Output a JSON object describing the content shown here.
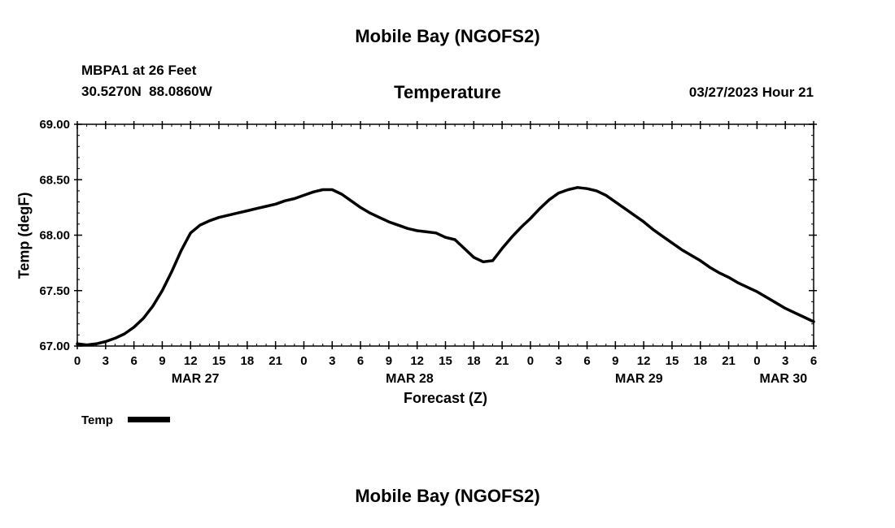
{
  "page": {
    "top_title": "Mobile Bay (NGOFS2)",
    "bottom_title": "Mobile Bay (NGOFS2)"
  },
  "header": {
    "station": "MBPA1 at 26 Feet",
    "coords": "30.5270N  88.0860W",
    "chart_title": "Temperature",
    "datetime": "03/27/2023 Hour 21"
  },
  "legend": {
    "label": "Temp"
  },
  "chart_data": {
    "type": "line",
    "title": "Temperature",
    "xlabel": "Forecast (Z)",
    "ylabel": "Temp (degF)",
    "xlim": [
      0,
      78
    ],
    "ylim": [
      67.0,
      69.0
    ],
    "grid": false,
    "legend_position": "bottom-left",
    "colors": {
      "line": "#000000",
      "background": "#ffffff"
    },
    "x_major_tick_hours": 3,
    "x_minor_tick_hours": 1,
    "y_major_tick": 0.5,
    "y_minor_tick": 0.1,
    "x_tick_hours": [
      0,
      3,
      6,
      9,
      12,
      15,
      18,
      21,
      24,
      27,
      30,
      33,
      36,
      39,
      42,
      45,
      48,
      51,
      54,
      57,
      60,
      63,
      66,
      69,
      72,
      75,
      78
    ],
    "x_tick_labels": [
      "0",
      "3",
      "6",
      "9",
      "12",
      "15",
      "18",
      "21",
      "0",
      "3",
      "6",
      "9",
      "12",
      "15",
      "18",
      "21",
      "0",
      "3",
      "6",
      "9",
      "12",
      "15",
      "18",
      "21",
      "0",
      "3",
      "6"
    ],
    "day_labels": [
      {
        "label": "MAR 27",
        "hour": 12.5
      },
      {
        "label": "MAR 28",
        "hour": 35.2
      },
      {
        "label": "MAR 29",
        "hour": 59.5
      },
      {
        "label": "MAR 30",
        "hour": 74.8
      }
    ],
    "y_ticks": [
      67.0,
      67.5,
      68.0,
      68.5,
      69.0
    ],
    "y_tick_labels": [
      "67.00",
      "67.50",
      "68.00",
      "68.50",
      "69.00"
    ],
    "series": [
      {
        "name": "Temp",
        "color": "#000000",
        "points": [
          [
            0,
            67.02
          ],
          [
            1,
            67.01
          ],
          [
            2,
            67.02
          ],
          [
            3,
            67.04
          ],
          [
            4,
            67.07
          ],
          [
            5,
            67.11
          ],
          [
            6,
            67.17
          ],
          [
            7,
            67.25
          ],
          [
            8,
            67.36
          ],
          [
            9,
            67.5
          ],
          [
            10,
            67.67
          ],
          [
            11,
            67.86
          ],
          [
            12,
            68.02
          ],
          [
            13,
            68.09
          ],
          [
            14,
            68.13
          ],
          [
            15,
            68.16
          ],
          [
            16,
            68.18
          ],
          [
            17,
            68.2
          ],
          [
            18,
            68.22
          ],
          [
            19,
            68.24
          ],
          [
            20,
            68.26
          ],
          [
            21,
            68.28
          ],
          [
            22,
            68.31
          ],
          [
            23,
            68.33
          ],
          [
            24,
            68.36
          ],
          [
            25,
            68.39
          ],
          [
            26,
            68.41
          ],
          [
            27,
            68.41
          ],
          [
            28,
            68.37
          ],
          [
            29,
            68.31
          ],
          [
            30,
            68.25
          ],
          [
            31,
            68.2
          ],
          [
            32,
            68.16
          ],
          [
            33,
            68.12
          ],
          [
            34,
            68.09
          ],
          [
            35,
            68.06
          ],
          [
            36,
            68.04
          ],
          [
            37,
            68.03
          ],
          [
            38,
            68.02
          ],
          [
            39,
            67.98
          ],
          [
            40,
            67.96
          ],
          [
            41,
            67.88
          ],
          [
            42,
            67.8
          ],
          [
            43,
            67.76
          ],
          [
            44,
            67.77
          ],
          [
            45,
            67.88
          ],
          [
            46,
            67.98
          ],
          [
            47,
            68.07
          ],
          [
            48,
            68.15
          ],
          [
            49,
            68.24
          ],
          [
            50,
            68.32
          ],
          [
            51,
            68.38
          ],
          [
            52,
            68.41
          ],
          [
            53,
            68.43
          ],
          [
            54,
            68.42
          ],
          [
            55,
            68.4
          ],
          [
            56,
            68.36
          ],
          [
            57,
            68.3
          ],
          [
            58,
            68.24
          ],
          [
            59,
            68.18
          ],
          [
            60,
            68.12
          ],
          [
            61,
            68.05
          ],
          [
            62,
            67.99
          ],
          [
            63,
            67.93
          ],
          [
            64,
            67.87
          ],
          [
            65,
            67.82
          ],
          [
            66,
            67.77
          ],
          [
            67,
            67.71
          ],
          [
            68,
            67.66
          ],
          [
            69,
            67.62
          ],
          [
            70,
            67.57
          ],
          [
            71,
            67.53
          ],
          [
            72,
            67.49
          ],
          [
            73,
            67.44
          ],
          [
            74,
            67.39
          ],
          [
            75,
            67.34
          ],
          [
            76,
            67.3
          ],
          [
            77,
            67.26
          ],
          [
            78,
            67.22
          ]
        ]
      }
    ]
  }
}
